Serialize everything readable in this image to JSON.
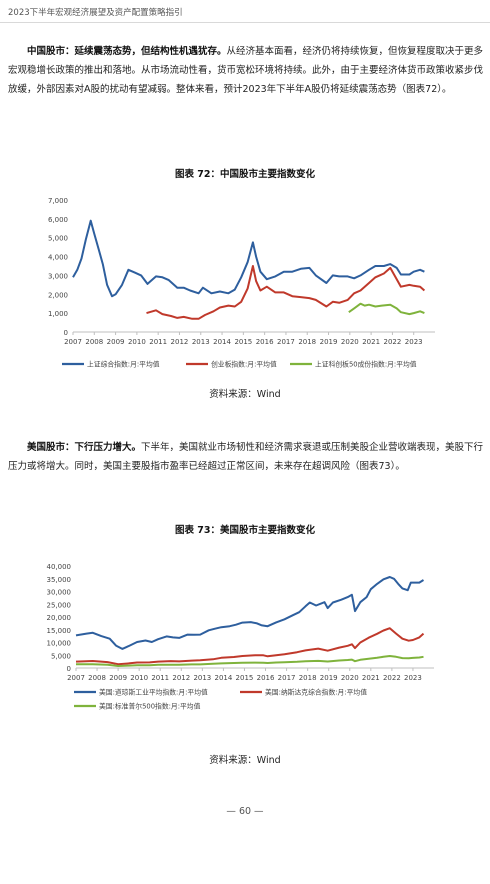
{
  "header": {
    "running_title": "2023下半年宏观经济展望及资产配置策略指引"
  },
  "para1": {
    "lead": "中国股市：延续震荡态势，但结构性机遇犹存。",
    "body": "从经济基本面看，经济仍将持续恢复，但恢复程度取决于更多宏观稳增长政策的推出和落地。从市场流动性看，货币宽松环境将持续。此外，由于主要经济体货币政策收紧步伐放缓，外部因素对A股的扰动有望减弱。整体来看，预计2023年下半年A股仍将延续震荡态势（图表72）。"
  },
  "figure72": {
    "title": "图表 72：中国股市主要指数变化",
    "source": "资料来源：Wind"
  },
  "para2": {
    "lead": "美国股市：下行压力增大。",
    "body": "下半年，美国就业市场韧性和经济需求衰退或压制美股企业营收端表现，美股下行压力或将增大。同时，美国主要股指市盈率已经超过正常区间，未来存在超调风险（图表73）。"
  },
  "figure73": {
    "title": "图表 73：美国股市主要指数变化",
    "source": "资料来源：Wind"
  },
  "footer": {
    "page_number": "— 60 —"
  },
  "chart_data": [
    {
      "type": "line",
      "x_ticks": [
        "2007",
        "2008",
        "2009",
        "2010",
        "2011",
        "2012",
        "2013",
        "2014",
        "2015",
        "2016",
        "2017",
        "2018",
        "2019",
        "2020",
        "2021",
        "2022",
        "2023"
      ],
      "ylim": [
        0,
        7000
      ],
      "y_ticks": [
        "0",
        "1,000",
        "2,000",
        "3,000",
        "4,000",
        "5,000",
        "6,000",
        "7,000"
      ],
      "grid": false,
      "legend_position": "bottom",
      "series": [
        {
          "name": "上证综合指数:月:平均值",
          "color": "#2e5f9e",
          "points": [
            [
              2007.0,
              2900
            ],
            [
              2007.2,
              3300
            ],
            [
              2007.4,
              3900
            ],
            [
              2007.6,
              4900
            ],
            [
              2007.83,
              5900
            ],
            [
              2008.0,
              5200
            ],
            [
              2008.2,
              4400
            ],
            [
              2008.4,
              3600
            ],
            [
              2008.6,
              2500
            ],
            [
              2008.83,
              1900
            ],
            [
              2009.0,
              2000
            ],
            [
              2009.3,
              2500
            ],
            [
              2009.6,
              3300
            ],
            [
              2009.9,
              3150
            ],
            [
              2010.2,
              3000
            ],
            [
              2010.5,
              2550
            ],
            [
              2010.9,
              2950
            ],
            [
              2011.2,
              2900
            ],
            [
              2011.5,
              2750
            ],
            [
              2011.9,
              2350
            ],
            [
              2012.2,
              2350
            ],
            [
              2012.5,
              2200
            ],
            [
              2012.9,
              2050
            ],
            [
              2013.1,
              2350
            ],
            [
              2013.5,
              2050
            ],
            [
              2013.9,
              2150
            ],
            [
              2014.3,
              2050
            ],
            [
              2014.6,
              2250
            ],
            [
              2014.9,
              2900
            ],
            [
              2015.2,
              3700
            ],
            [
              2015.45,
              4750
            ],
            [
              2015.6,
              4000
            ],
            [
              2015.8,
              3200
            ],
            [
              2016.1,
              2800
            ],
            [
              2016.5,
              2950
            ],
            [
              2016.9,
              3200
            ],
            [
              2017.3,
              3200
            ],
            [
              2017.7,
              3350
            ],
            [
              2018.1,
              3400
            ],
            [
              2018.4,
              3000
            ],
            [
              2018.9,
              2600
            ],
            [
              2019.2,
              3000
            ],
            [
              2019.5,
              2950
            ],
            [
              2019.9,
              2950
            ],
            [
              2020.2,
              2850
            ],
            [
              2020.5,
              3000
            ],
            [
              2020.9,
              3300
            ],
            [
              2021.2,
              3500
            ],
            [
              2021.6,
              3500
            ],
            [
              2021.9,
              3600
            ],
            [
              2022.2,
              3400
            ],
            [
              2022.4,
              3050
            ],
            [
              2022.8,
              3050
            ],
            [
              2023.0,
              3200
            ],
            [
              2023.3,
              3300
            ],
            [
              2023.5,
              3200
            ]
          ]
        },
        {
          "name": "创业板指数:月:平均值",
          "color": "#c0392b",
          "points": [
            [
              2010.45,
              1000
            ],
            [
              2010.9,
              1150
            ],
            [
              2011.2,
              950
            ],
            [
              2011.6,
              850
            ],
            [
              2011.9,
              750
            ],
            [
              2012.2,
              800
            ],
            [
              2012.6,
              700
            ],
            [
              2012.9,
              700
            ],
            [
              2013.2,
              900
            ],
            [
              2013.6,
              1100
            ],
            [
              2013.9,
              1300
            ],
            [
              2014.3,
              1400
            ],
            [
              2014.6,
              1350
            ],
            [
              2014.9,
              1600
            ],
            [
              2015.2,
              2300
            ],
            [
              2015.45,
              3500
            ],
            [
              2015.6,
              2700
            ],
            [
              2015.8,
              2200
            ],
            [
              2016.1,
              2400
            ],
            [
              2016.5,
              2100
            ],
            [
              2016.9,
              2100
            ],
            [
              2017.3,
              1900
            ],
            [
              2017.7,
              1850
            ],
            [
              2018.1,
              1800
            ],
            [
              2018.4,
              1700
            ],
            [
              2018.9,
              1350
            ],
            [
              2019.2,
              1600
            ],
            [
              2019.5,
              1550
            ],
            [
              2019.9,
              1700
            ],
            [
              2020.2,
              2050
            ],
            [
              2020.5,
              2200
            ],
            [
              2020.9,
              2600
            ],
            [
              2021.2,
              2900
            ],
            [
              2021.6,
              3100
            ],
            [
              2021.9,
              3400
            ],
            [
              2022.2,
              2800
            ],
            [
              2022.4,
              2400
            ],
            [
              2022.8,
              2500
            ],
            [
              2023.0,
              2450
            ],
            [
              2023.3,
              2400
            ],
            [
              2023.5,
              2200
            ]
          ]
        },
        {
          "name": "上证科创板50成份指数:月:平均值",
          "color": "#7fb33c",
          "points": [
            [
              2019.95,
              1050
            ],
            [
              2020.2,
              1250
            ],
            [
              2020.5,
              1500
            ],
            [
              2020.7,
              1400
            ],
            [
              2020.9,
              1450
            ],
            [
              2021.2,
              1350
            ],
            [
              2021.5,
              1400
            ],
            [
              2021.9,
              1450
            ],
            [
              2022.2,
              1250
            ],
            [
              2022.4,
              1050
            ],
            [
              2022.8,
              950
            ],
            [
              2023.0,
              1000
            ],
            [
              2023.3,
              1100
            ],
            [
              2023.5,
              1000
            ]
          ]
        }
      ]
    },
    {
      "type": "line",
      "x_ticks": [
        "2007",
        "2008",
        "2009",
        "2010",
        "2011",
        "2012",
        "2013",
        "2014",
        "2015",
        "2016",
        "2017",
        "2018",
        "2019",
        "2020",
        "2021",
        "2022",
        "2023"
      ],
      "ylim": [
        0,
        40000
      ],
      "y_ticks": [
        "0",
        "5,000",
        "10,000",
        "15,000",
        "20,000",
        "25,000",
        "30,000",
        "35,000",
        "40,000"
      ],
      "grid": false,
      "legend_position": "bottom",
      "series": [
        {
          "name": "美国:道琼斯工业平均指数:月:平均值",
          "color": "#2e5f9e",
          "points": [
            [
              2007.0,
              12800
            ],
            [
              2007.5,
              13500
            ],
            [
              2007.8,
              13800
            ],
            [
              2008.2,
              12500
            ],
            [
              2008.6,
              11500
            ],
            [
              2008.9,
              8800
            ],
            [
              2009.2,
              7500
            ],
            [
              2009.5,
              8600
            ],
            [
              2009.9,
              10200
            ],
            [
              2010.3,
              10800
            ],
            [
              2010.6,
              10200
            ],
            [
              2010.9,
              11300
            ],
            [
              2011.3,
              12400
            ],
            [
              2011.6,
              12000
            ],
            [
              2011.9,
              11800
            ],
            [
              2012.3,
              13100
            ],
            [
              2012.6,
              13000
            ],
            [
              2012.9,
              13100
            ],
            [
              2013.3,
              14800
            ],
            [
              2013.6,
              15400
            ],
            [
              2013.9,
              16000
            ],
            [
              2014.3,
              16400
            ],
            [
              2014.6,
              17000
            ],
            [
              2014.9,
              17800
            ],
            [
              2015.3,
              18000
            ],
            [
              2015.6,
              17500
            ],
            [
              2015.8,
              16800
            ],
            [
              2016.1,
              16400
            ],
            [
              2016.5,
              17900
            ],
            [
              2016.9,
              19100
            ],
            [
              2017.3,
              20700
            ],
            [
              2017.6,
              21900
            ],
            [
              2017.9,
              24200
            ],
            [
              2018.1,
              25700
            ],
            [
              2018.4,
              24500
            ],
            [
              2018.8,
              25800
            ],
            [
              2018.95,
              23500
            ],
            [
              2019.2,
              25700
            ],
            [
              2019.6,
              26800
            ],
            [
              2019.9,
              27800
            ],
            [
              2020.1,
              28700
            ],
            [
              2020.25,
              22300
            ],
            [
              2020.5,
              25800
            ],
            [
              2020.8,
              27800
            ],
            [
              2021.0,
              30900
            ],
            [
              2021.3,
              33000
            ],
            [
              2021.6,
              34800
            ],
            [
              2021.9,
              35700
            ],
            [
              2022.1,
              35000
            ],
            [
              2022.3,
              33000
            ],
            [
              2022.5,
              31200
            ],
            [
              2022.75,
              30500
            ],
            [
              2022.9,
              33500
            ],
            [
              2023.1,
              33500
            ],
            [
              2023.3,
              33500
            ],
            [
              2023.5,
              34500
            ]
          ]
        },
        {
          "name": "美国:纳斯达克综合指数:月:平均值",
          "color": "#c0392b",
          "points": [
            [
              2007.0,
              2500
            ],
            [
              2007.8,
              2750
            ],
            [
              2008.5,
              2300
            ],
            [
              2009.0,
              1500
            ],
            [
              2009.5,
              1800
            ],
            [
              2009.9,
              2150
            ],
            [
              2010.5,
              2200
            ],
            [
              2010.9,
              2500
            ],
            [
              2011.5,
              2700
            ],
            [
              2011.9,
              2600
            ],
            [
              2012.5,
              2900
            ],
            [
              2012.9,
              3000
            ],
            [
              2013.5,
              3400
            ],
            [
              2013.9,
              4000
            ],
            [
              2014.5,
              4300
            ],
            [
              2014.9,
              4700
            ],
            [
              2015.5,
              5000
            ],
            [
              2015.9,
              5000
            ],
            [
              2016.1,
              4600
            ],
            [
              2016.5,
              5000
            ],
            [
              2016.9,
              5400
            ],
            [
              2017.5,
              6200
            ],
            [
              2017.9,
              6900
            ],
            [
              2018.5,
              7600
            ],
            [
              2018.95,
              6800
            ],
            [
              2019.5,
              8000
            ],
            [
              2019.9,
              8700
            ],
            [
              2020.1,
              9300
            ],
            [
              2020.25,
              7800
            ],
            [
              2020.5,
              10000
            ],
            [
              2020.9,
              11900
            ],
            [
              2021.3,
              13400
            ],
            [
              2021.6,
              14700
            ],
            [
              2021.9,
              15600
            ],
            [
              2022.2,
              13500
            ],
            [
              2022.5,
              11500
            ],
            [
              2022.8,
              10700
            ],
            [
              2023.0,
              11000
            ],
            [
              2023.3,
              12000
            ],
            [
              2023.5,
              13500
            ]
          ]
        },
        {
          "name": "美国:标准普尔500指数:月:平均值",
          "color": "#7fb33c",
          "points": [
            [
              2007.0,
              1450
            ],
            [
              2007.8,
              1500
            ],
            [
              2008.5,
              1300
            ],
            [
              2009.0,
              800
            ],
            [
              2009.5,
              950
            ],
            [
              2009.9,
              1100
            ],
            [
              2010.5,
              1100
            ],
            [
              2010.9,
              1250
            ],
            [
              2011.5,
              1300
            ],
            [
              2011.9,
              1250
            ],
            [
              2012.5,
              1400
            ],
            [
              2012.9,
              1420
            ],
            [
              2013.5,
              1650
            ],
            [
              2013.9,
              1800
            ],
            [
              2014.5,
              1950
            ],
            [
              2014.9,
              2050
            ],
            [
              2015.5,
              2100
            ],
            [
              2015.9,
              2050
            ],
            [
              2016.1,
              1950
            ],
            [
              2016.5,
              2150
            ],
            [
              2016.9,
              2250
            ],
            [
              2017.5,
              2450
            ],
            [
              2017.9,
              2650
            ],
            [
              2018.5,
              2800
            ],
            [
              2018.95,
              2550
            ],
            [
              2019.5,
              2950
            ],
            [
              2019.9,
              3150
            ],
            [
              2020.1,
              3300
            ],
            [
              2020.25,
              2650
            ],
            [
              2020.5,
              3200
            ],
            [
              2020.9,
              3600
            ],
            [
              2021.3,
              4000
            ],
            [
              2021.6,
              4400
            ],
            [
              2021.9,
              4700
            ],
            [
              2022.2,
              4400
            ],
            [
              2022.5,
              3900
            ],
            [
              2022.8,
              3800
            ],
            [
              2023.0,
              3950
            ],
            [
              2023.3,
              4100
            ],
            [
              2023.5,
              4400
            ]
          ]
        }
      ]
    }
  ]
}
